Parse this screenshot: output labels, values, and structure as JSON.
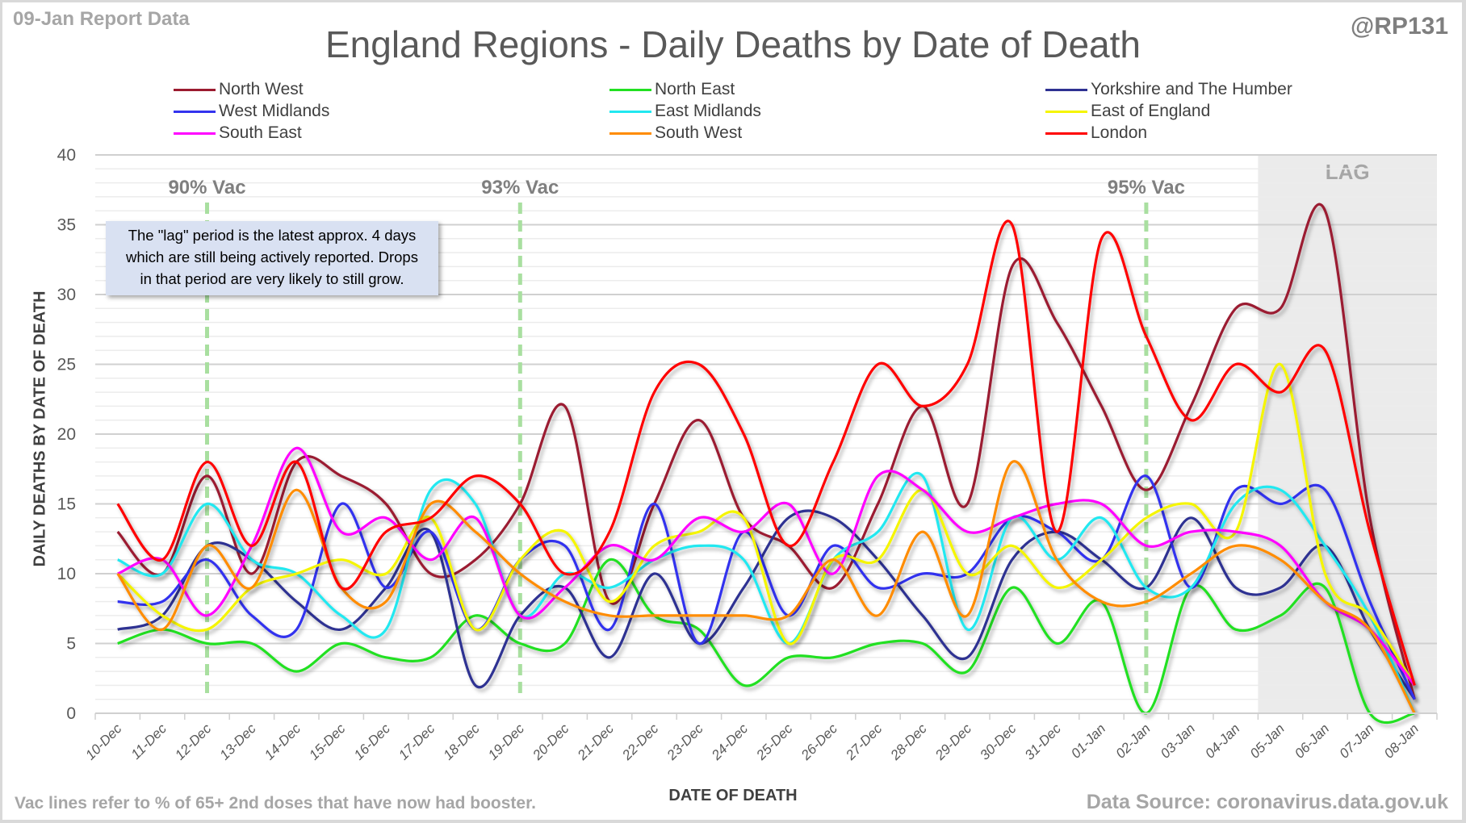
{
  "header": {
    "report_label": "09-Jan Report Data",
    "handle": "@RP131",
    "title": "England Regions - Daily Deaths by Date of Death"
  },
  "footer": {
    "note": "Vac lines refer to % of 65+ 2nd doses that have now had booster.",
    "source": "Data Source: coronavirus.data.gov.uk"
  },
  "annotation": {
    "text_lines": [
      "The \"lag\" period is the latest approx. 4 days",
      "which are still being actively reported.  Drops",
      "in that period are very likely to still grow."
    ]
  },
  "chart_data": {
    "type": "line",
    "title": "England Regions - Daily Deaths by Date of Death",
    "xlabel": "DATE OF DEATH",
    "ylabel": "DAILY DEATHS BY DATE OF DEATH",
    "ylim": [
      0,
      40
    ],
    "yticks": [
      0,
      5,
      10,
      15,
      20,
      25,
      30,
      35,
      40
    ],
    "grid": true,
    "smoothed": true,
    "legend_position": "top",
    "categories": [
      "10-Dec",
      "11-Dec",
      "12-Dec",
      "13-Dec",
      "14-Dec",
      "15-Dec",
      "16-Dec",
      "17-Dec",
      "18-Dec",
      "19-Dec",
      "20-Dec",
      "21-Dec",
      "22-Dec",
      "23-Dec",
      "24-Dec",
      "25-Dec",
      "26-Dec",
      "27-Dec",
      "28-Dec",
      "29-Dec",
      "30-Dec",
      "31-Dec",
      "01-Jan",
      "02-Jan",
      "03-Jan",
      "04-Jan",
      "05-Jan",
      "06-Jan",
      "07-Jan",
      "08-Jan"
    ],
    "series": [
      {
        "name": "North West",
        "color": "#9b1b30",
        "values": [
          13,
          10,
          17,
          10,
          18,
          17,
          15,
          10,
          11,
          15,
          22,
          8,
          15,
          21,
          14,
          12,
          9,
          15,
          22,
          15,
          32,
          28,
          22,
          16,
          22,
          29,
          29,
          36,
          14,
          1
        ]
      },
      {
        "name": "North East",
        "color": "#22e022",
        "values": [
          5,
          6,
          5,
          5,
          3,
          5,
          4,
          4,
          7,
          5,
          5,
          11,
          7,
          6,
          2,
          4,
          4,
          5,
          5,
          3,
          9,
          5,
          8,
          0,
          9,
          6,
          7,
          9,
          0,
          0
        ]
      },
      {
        "name": "Yorkshire and The Humber",
        "color": "#2e3192",
        "values": [
          6,
          7,
          12,
          11,
          8,
          6,
          9,
          13,
          2,
          7,
          9,
          4,
          10,
          5,
          9,
          14,
          14,
          11,
          7,
          4,
          11,
          13,
          11,
          9,
          14,
          9,
          9,
          12,
          6,
          1
        ]
      },
      {
        "name": "West Midlands",
        "color": "#3333ee",
        "values": [
          8,
          8,
          11,
          7,
          6,
          15,
          9,
          13,
          6,
          11,
          12,
          6,
          15,
          5,
          13,
          7,
          12,
          9,
          10,
          10,
          14,
          13,
          11,
          17,
          9,
          16,
          15,
          16,
          8,
          1
        ]
      },
      {
        "name": "East Midlands",
        "color": "#22e8f0",
        "values": [
          11,
          10,
          15,
          11,
          10,
          7,
          6,
          16,
          15,
          7,
          10,
          9,
          11,
          12,
          11,
          5,
          11,
          13,
          17,
          6,
          14,
          11,
          14,
          9,
          9,
          15,
          16,
          12,
          7,
          0
        ]
      },
      {
        "name": "East of England",
        "color": "#f5f500",
        "values": [
          10,
          7,
          6,
          9,
          10,
          11,
          10,
          14,
          6,
          11,
          13,
          8,
          12,
          13,
          14,
          5,
          11,
          11,
          16,
          10,
          12,
          9,
          11,
          14,
          15,
          13,
          25,
          10,
          7,
          2
        ]
      },
      {
        "name": "South East",
        "color": "#ff00ff",
        "values": [
          10,
          11,
          7,
          12,
          19,
          13,
          14,
          11,
          14,
          7,
          9,
          12,
          11,
          14,
          13,
          15,
          10,
          17,
          16,
          13,
          14,
          15,
          15,
          12,
          13,
          13,
          12,
          8,
          6,
          2
        ]
      },
      {
        "name": "South West",
        "color": "#ff8c00",
        "values": [
          10,
          6,
          12,
          9,
          16,
          9,
          8,
          15,
          13,
          10,
          8,
          7,
          7,
          7,
          7,
          7,
          11,
          7,
          13,
          7,
          18,
          11,
          8,
          8,
          10,
          12,
          11,
          8,
          6,
          0
        ]
      },
      {
        "name": "London",
        "color": "#ff0000",
        "values": [
          15,
          11,
          18,
          12,
          18,
          9,
          13,
          14,
          17,
          15,
          10,
          13,
          23,
          25,
          20,
          12,
          18,
          25,
          22,
          25,
          35,
          13,
          34,
          27,
          21,
          25,
          23,
          26,
          13,
          2
        ]
      }
    ],
    "vac_lines": [
      {
        "label": "90% Vac",
        "category": "12-Dec"
      },
      {
        "label": "93% Vac",
        "category": "19-Dec"
      },
      {
        "label": "95% Vac",
        "category": "02-Jan"
      }
    ],
    "lag_region": {
      "label": "LAG",
      "start_category": "05-Jan",
      "end_category": "08-Jan"
    }
  }
}
